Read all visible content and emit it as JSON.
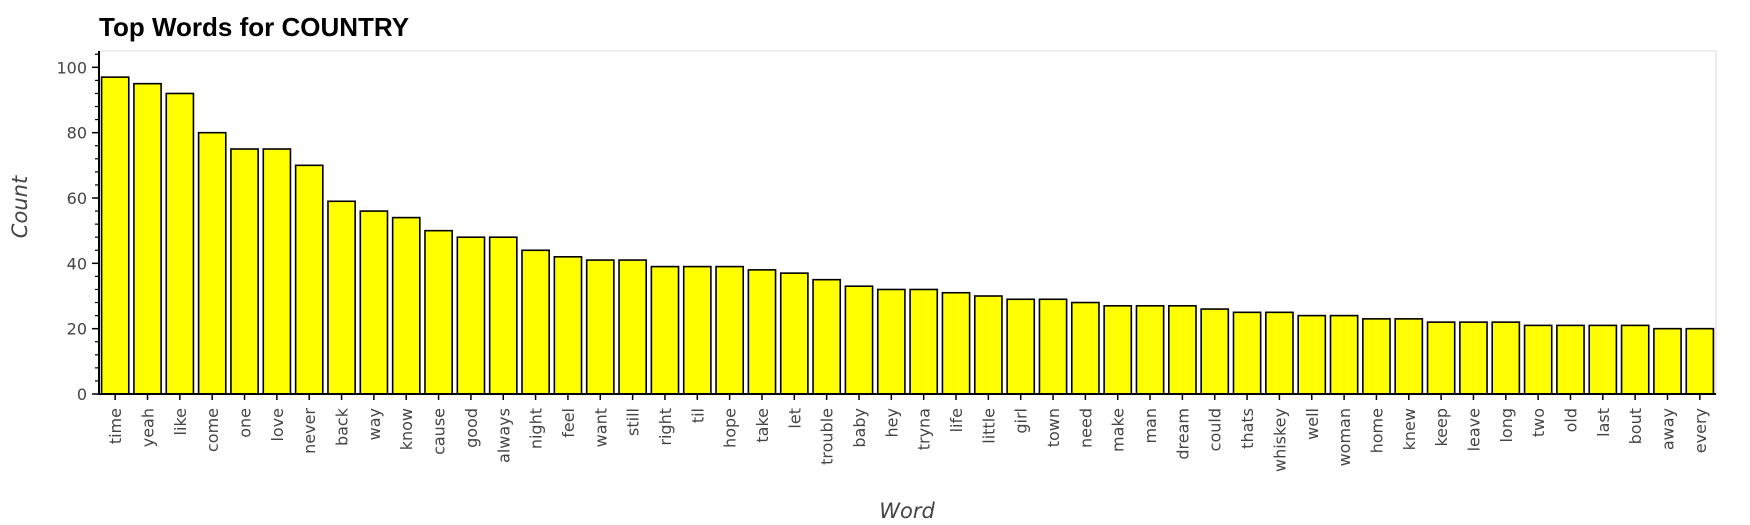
{
  "chart_data": {
    "type": "bar",
    "title": "Top Words for COUNTRY",
    "xlabel": "Word",
    "ylabel": "Count",
    "ylim": [
      0,
      105
    ],
    "yticks": [
      0,
      20,
      40,
      60,
      80,
      100
    ],
    "grid": false,
    "bar_color": "#ffff00",
    "bar_edge_color": "#000000",
    "categories": [
      "time",
      "yeah",
      "like",
      "come",
      "one",
      "love",
      "never",
      "back",
      "way",
      "know",
      "cause",
      "good",
      "always",
      "night",
      "feel",
      "want",
      "still",
      "right",
      "til",
      "hope",
      "take",
      "let",
      "trouble",
      "baby",
      "hey",
      "tryna",
      "life",
      "little",
      "girl",
      "town",
      "need",
      "make",
      "man",
      "dream",
      "could",
      "thats",
      "whiskey",
      "well",
      "woman",
      "home",
      "knew",
      "keep",
      "leave",
      "long",
      "two",
      "old",
      "last",
      "bout",
      "away",
      "every"
    ],
    "values": [
      97,
      95,
      92,
      80,
      75,
      75,
      70,
      59,
      56,
      54,
      50,
      48,
      48,
      44,
      42,
      41,
      41,
      39,
      39,
      39,
      38,
      37,
      35,
      33,
      32,
      32,
      31,
      30,
      29,
      29,
      28,
      27,
      27,
      27,
      26,
      25,
      25,
      24,
      24,
      23,
      23,
      22,
      22,
      22,
      21,
      21,
      21,
      21,
      20,
      20
    ]
  }
}
